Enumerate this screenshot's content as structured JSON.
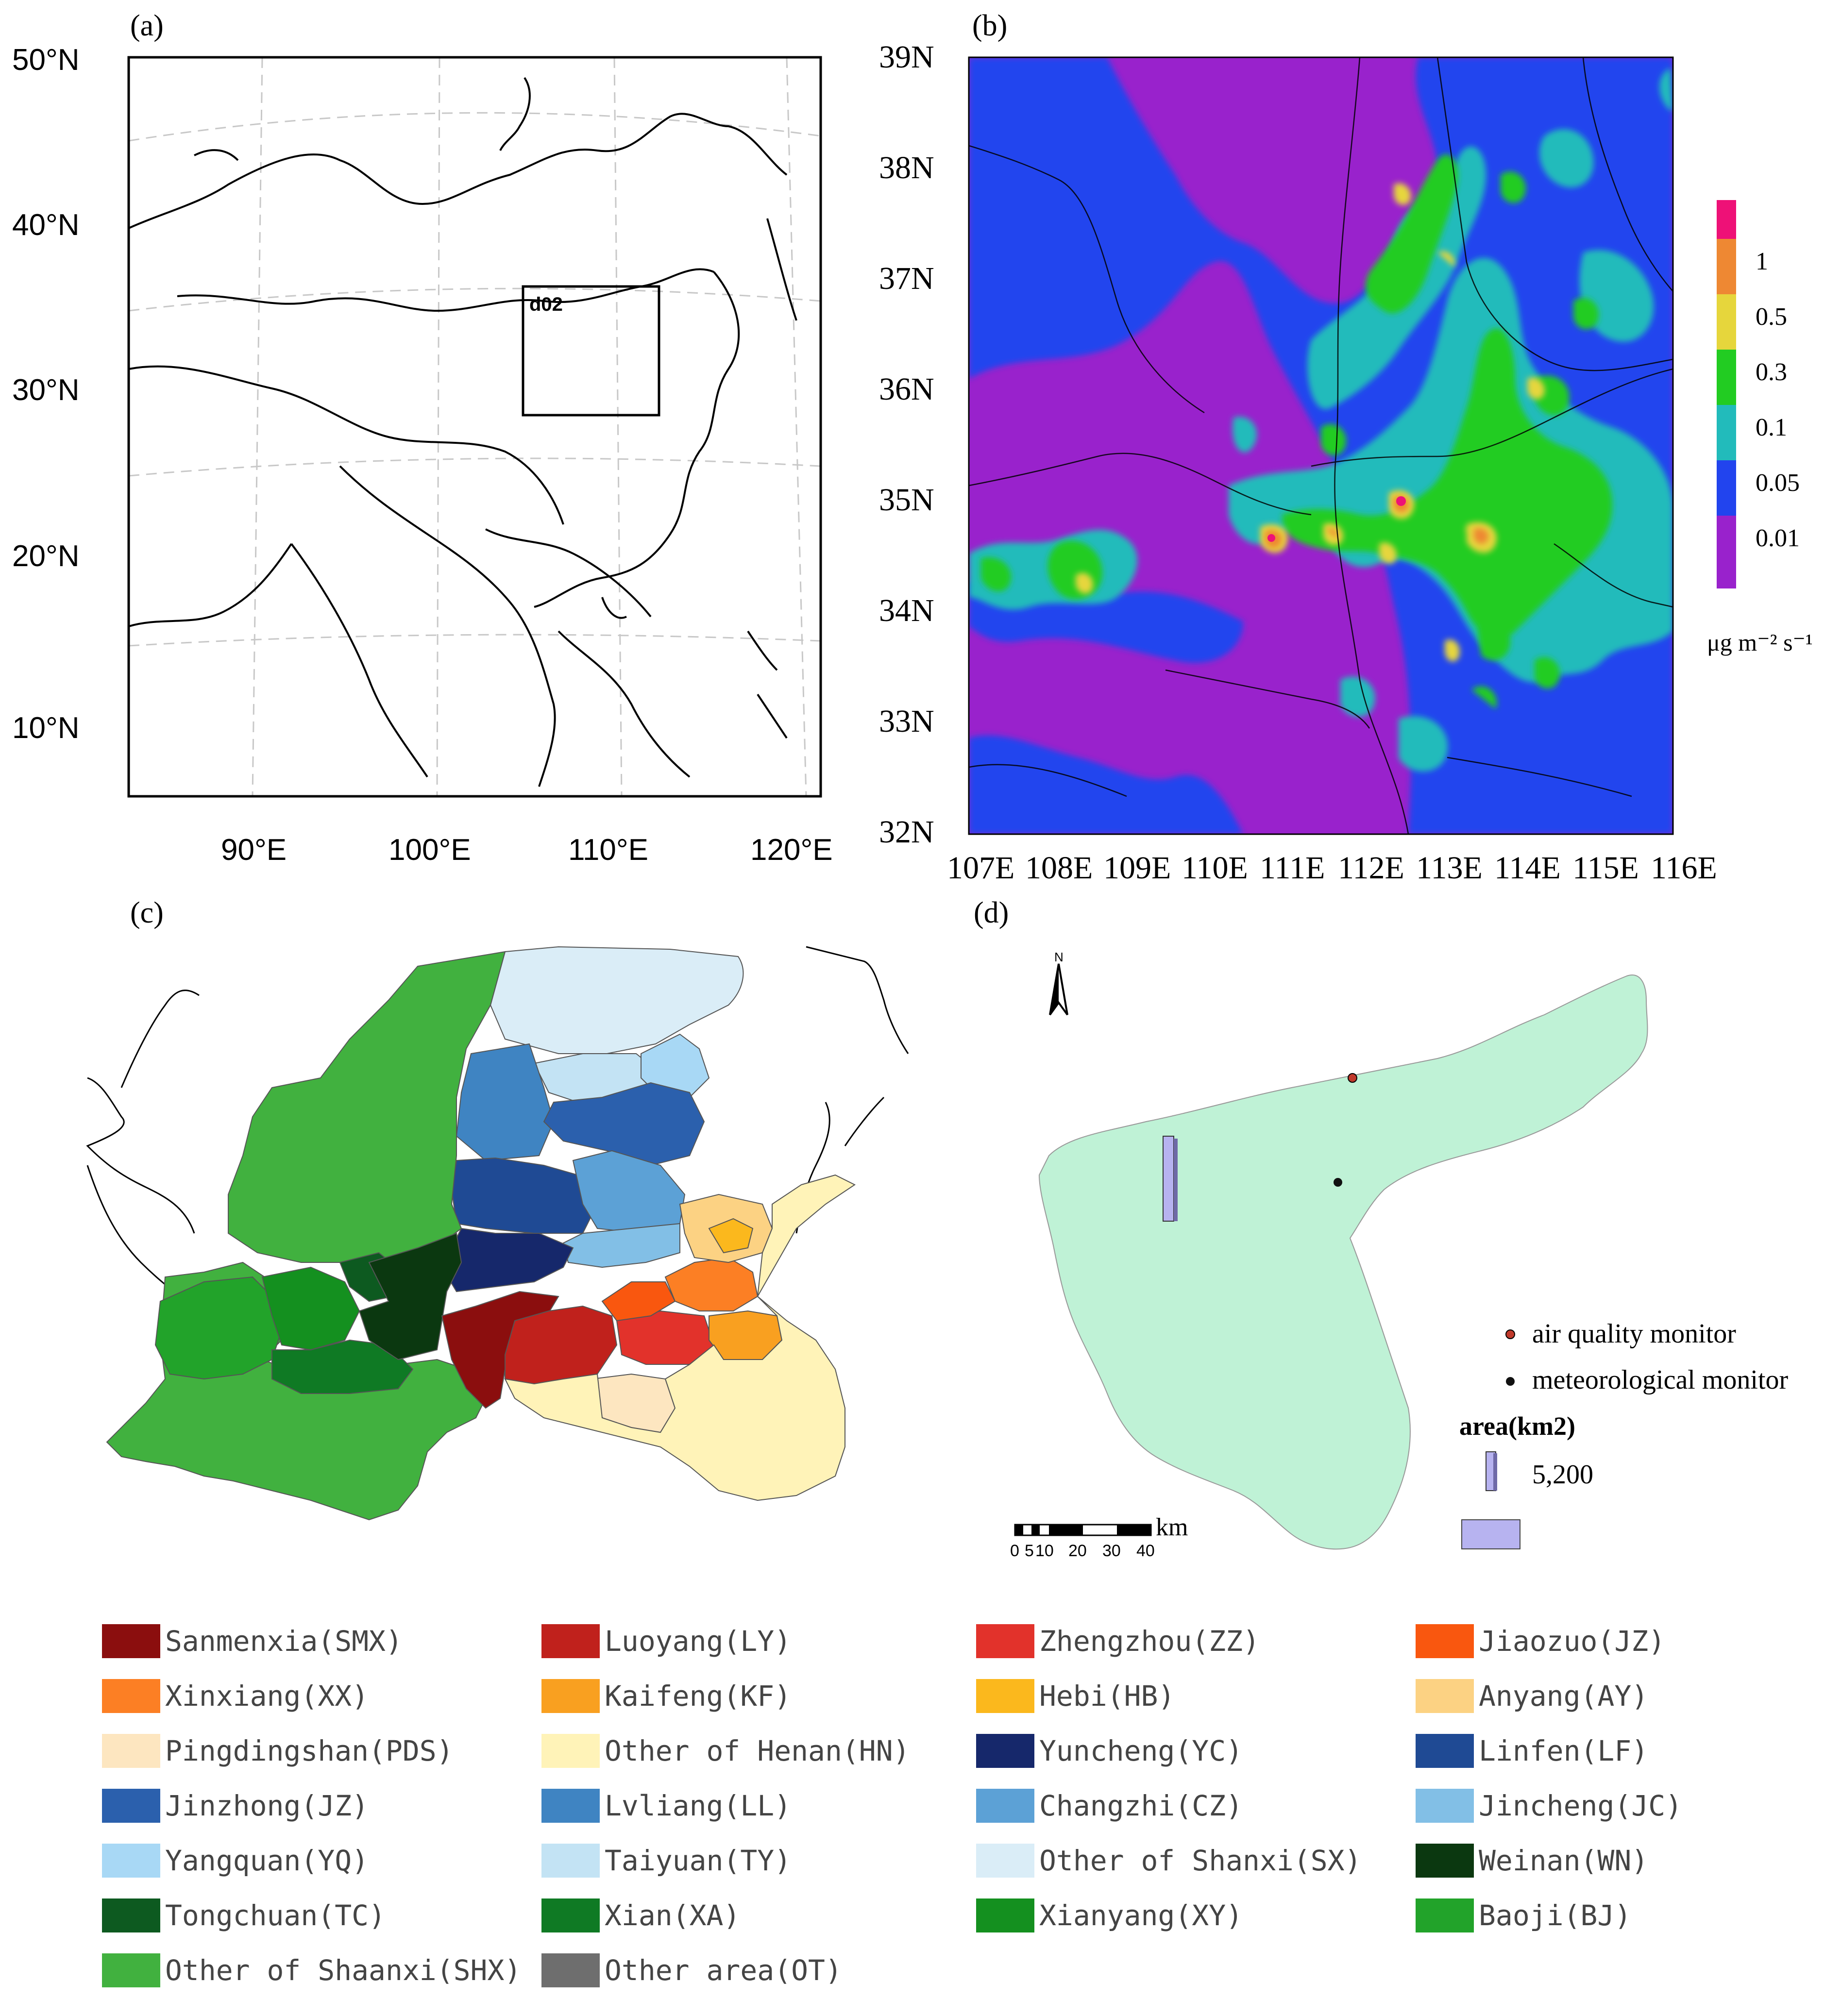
{
  "panels": {
    "a": {
      "label": "(a)",
      "domain_label": "d02",
      "lat_labels": [
        "50°N",
        "40°N",
        "30°N",
        "20°N",
        "10°N"
      ],
      "lon_labels": [
        "90°E",
        "100°E",
        "110°E",
        "120°E"
      ]
    },
    "b": {
      "label": "(b)",
      "lat_labels": [
        "39N",
        "38N",
        "37N",
        "36N",
        "35N",
        "34N",
        "33N",
        "32N"
      ],
      "lon_labels": [
        "107E",
        "108E",
        "109E",
        "110E",
        "111E",
        "112E",
        "113E",
        "114E",
        "115E",
        "116E"
      ],
      "colorbar": {
        "levels": [
          "1",
          "0.5",
          "0.3",
          "0.1",
          "0.05",
          "0.01"
        ],
        "colors": [
          "#ee1177",
          "#ee8833",
          "#e6d63c",
          "#22cc22",
          "#22bbbb",
          "#2244ee",
          "#9922cc"
        ],
        "unit": "μg m⁻² s⁻¹"
      }
    },
    "c": {
      "label": "(c)"
    },
    "d": {
      "label": "(d)",
      "north": "N",
      "legend_air": "air quality monitor",
      "legend_met": "meteorological monitor",
      "area_title": "area(km2)",
      "area_value": "5,200",
      "scale_unit": "km",
      "scale_ticks": [
        "0",
        "5",
        "10",
        "20",
        "30",
        "40"
      ],
      "fill_color": "#bff2d6",
      "air_color": "#c0392b",
      "met_color": "#111111"
    }
  },
  "legend": [
    {
      "label": "Sanmenxia(SMX)",
      "color": "#8b0e0e"
    },
    {
      "label": "Luoyang(LY)",
      "color": "#c0211c"
    },
    {
      "label": "Zhengzhou(ZZ)",
      "color": "#e2322b"
    },
    {
      "label": "Jiaozuo(JZ)",
      "color": "#f9570f"
    },
    {
      "label": "Xinxiang(XX)",
      "color": "#fc7f24"
    },
    {
      "label": "Kaifeng(KF)",
      "color": "#f9a020"
    },
    {
      "label": "Hebi(HB)",
      "color": "#fbb81d"
    },
    {
      "label": "Anyang(AY)",
      "color": "#fcd283"
    },
    {
      "label": "Pingdingshan(PDS)",
      "color": "#fde6c0"
    },
    {
      "label": "Other of Henan(HN)",
      "color": "#fff3b8"
    },
    {
      "label": "Yuncheng(YC)",
      "color": "#16286b"
    },
    {
      "label": "Linfen(LF)",
      "color": "#1f4a94"
    },
    {
      "label": "Jinzhong(JZ)",
      "color": "#2b60ad"
    },
    {
      "label": "Lvliang(LL)",
      "color": "#3f84c2"
    },
    {
      "label": "Changzhi(CZ)",
      "color": "#5ca1d6"
    },
    {
      "label": "Jincheng(JC)",
      "color": "#82bfe6"
    },
    {
      "label": "Yangquan(YQ)",
      "color": "#a8d8f5"
    },
    {
      "label": "Taiyuan(TY)",
      "color": "#c3e3f4"
    },
    {
      "label": "Other of Shanxi(SX)",
      "color": "#daedf7"
    },
    {
      "label": "Weinan(WN)",
      "color": "#0b3810"
    },
    {
      "label": "Tongchuan(TC)",
      "color": "#0d5a20"
    },
    {
      "label": "Xian(XA)",
      "color": "#0f7a24"
    },
    {
      "label": "Xianyang(XY)",
      "color": "#14901f"
    },
    {
      "label": "Baoji(BJ)",
      "color": "#22a32a"
    },
    {
      "label": "Other of Shaanxi(SHX)",
      "color": "#41b13f"
    },
    {
      "label": "Other area(OT)",
      "color": "#6e6e6e"
    }
  ]
}
